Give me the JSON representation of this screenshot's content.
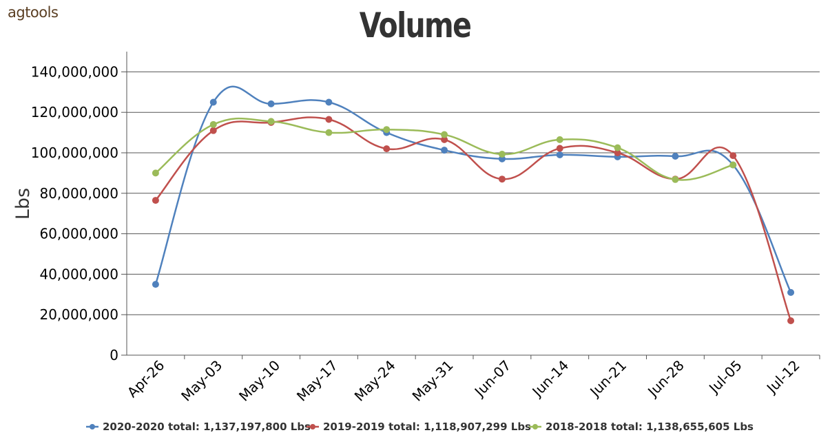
{
  "brand": {
    "logo": "agtools"
  },
  "chart_data": {
    "type": "line",
    "title": "Volume",
    "ylabel": "Lbs",
    "xlabel": "",
    "ylim": [
      0,
      150000000
    ],
    "yticks": [
      0,
      20000000,
      40000000,
      60000000,
      80000000,
      100000000,
      120000000,
      140000000
    ],
    "ytick_labels": [
      "0",
      "20,000,000",
      "40,000,000",
      "60,000,000",
      "80,000,000",
      "100,000,000",
      "120,000,000",
      "140,000,000"
    ],
    "categories": [
      "Apr-26",
      "May-03",
      "May-10",
      "May-17",
      "May-24",
      "May-31",
      "Jun-07",
      "Jun-14",
      "Jun-21",
      "Jun-28",
      "Jul-05",
      "Jul-12"
    ],
    "grid": true,
    "legend_position": "bottom",
    "series": [
      {
        "name": "2020-2020 total: 1,137,197,800 Lbs",
        "color": "#4f81bd",
        "values": [
          35000000,
          125000000,
          124200000,
          125000000,
          110000000,
          101300000,
          97000000,
          99000000,
          98000000,
          98300000,
          94000000,
          31000000
        ]
      },
      {
        "name": "2019-2019 total: 1,118,907,299 Lbs",
        "color": "#c0504d",
        "values": [
          76500000,
          111000000,
          115000000,
          116500000,
          102000000,
          106500000,
          87000000,
          102200000,
          100000000,
          87000000,
          98600000,
          17000000
        ]
      },
      {
        "name": "2018-2018 total: 1,138,655,605 Lbs",
        "color": "#9bbb59",
        "values": [
          90000000,
          114000000,
          115500000,
          110000000,
          111500000,
          109000000,
          99300000,
          106500000,
          102500000,
          86800000,
          94000000,
          null
        ]
      }
    ]
  }
}
